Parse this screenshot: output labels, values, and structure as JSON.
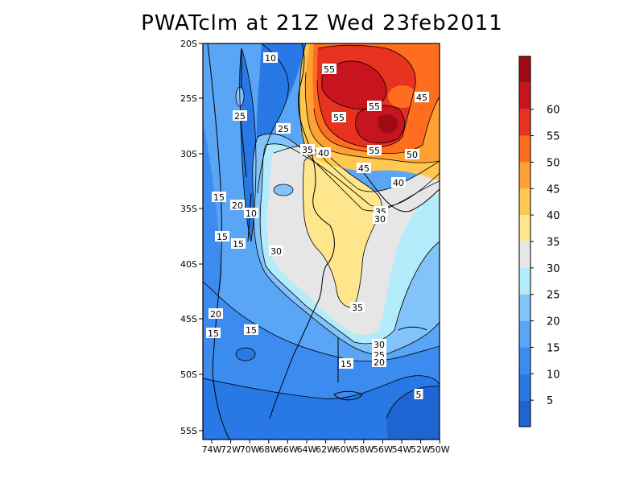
{
  "title": "PWATclm at 21Z Wed 23feb2011",
  "lat_labels": [
    "20S",
    "25S",
    "30S",
    "35S",
    "40S",
    "45S",
    "50S",
    "55S"
  ],
  "lon_labels": [
    "74W",
    "72W",
    "70W",
    "68W",
    "66W",
    "64W",
    "62W",
    "60W",
    "58W",
    "56W",
    "54W",
    "52W",
    "50W"
  ],
  "colorbar": {
    "levels": [
      "5",
      "10",
      "15",
      "20",
      "25",
      "30",
      "35",
      "40",
      "45",
      "50",
      "55",
      "60"
    ],
    "colors": [
      "#1e64d2",
      "#2878e6",
      "#3c8cf0",
      "#5aa5f5",
      "#82c3fa",
      "#b4ebfa",
      "#e6e6e6",
      "#ffe68c",
      "#ffc850",
      "#ffa032",
      "#ff6e1e",
      "#e6321e",
      "#c8141e",
      "#a00a14"
    ]
  },
  "contour_labels": [
    "10",
    "55",
    "55",
    "45",
    "25",
    "55",
    "25",
    "35",
    "40",
    "55",
    "50",
    "45",
    "40",
    "15",
    "20",
    "10",
    "35",
    "30",
    "15",
    "15",
    "30",
    "35",
    "20",
    "15",
    "15",
    "30",
    "25",
    "20",
    "15",
    "5"
  ]
}
